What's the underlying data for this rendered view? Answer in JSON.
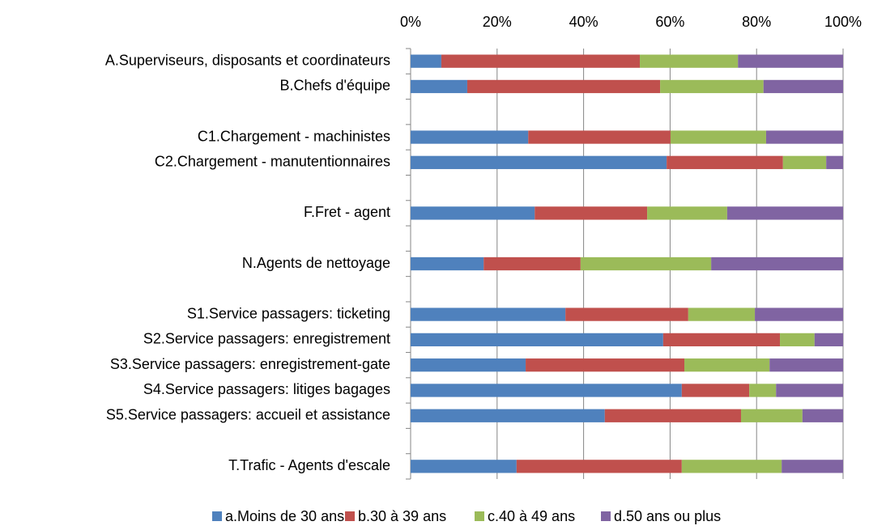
{
  "chart_data": {
    "type": "bar",
    "orientation": "horizontal",
    "stacked": true,
    "categories": [
      "A.Superviseurs, disposants et coordinateurs",
      "B.Chefs d'équipe",
      null,
      "C1.Chargement - machinistes",
      "C2.Chargement - manutentionnaires",
      null,
      "F.Fret - agent",
      null,
      "N.Agents de nettoyage",
      null,
      "S1.Service passagers: ticketing",
      "S2.Service passagers: enregistrement",
      "S3.Service passagers: enregistrement-gate",
      "S4.Service passagers: litiges bagages",
      "S5.Service passagers: accueil et assistance",
      null,
      "T.Trafic - Agents d'escale"
    ],
    "series": [
      {
        "name": "a.Moins de 30 ans",
        "color": "#4f81bd",
        "values": [
          7.1,
          13.1,
          null,
          27.2,
          59.2,
          null,
          28.7,
          null,
          16.9,
          null,
          35.8,
          58.4,
          26.6,
          62.7,
          44.9,
          null,
          24.5
        ]
      },
      {
        "name": "b.30 à 39 ans",
        "color": "#c0504d",
        "values": [
          45.9,
          44.6,
          null,
          32.9,
          26.9,
          null,
          26.0,
          null,
          22.4,
          null,
          28.4,
          27.0,
          36.7,
          15.6,
          31.5,
          null,
          38.2
        ]
      },
      {
        "name": "c.40 à 49 ans",
        "color": "#9bbb59",
        "values": [
          22.7,
          23.9,
          null,
          22.1,
          10.0,
          null,
          18.5,
          null,
          30.2,
          null,
          15.4,
          8.0,
          19.7,
          6.2,
          14.2,
          null,
          23.1
        ]
      },
      {
        "name": "d.50 ans ou plus",
        "color": "#8064a2",
        "values": [
          24.3,
          18.4,
          null,
          17.8,
          3.9,
          null,
          26.8,
          null,
          30.5,
          null,
          20.4,
          6.6,
          17.0,
          15.5,
          9.4,
          null,
          14.2
        ]
      }
    ],
    "xlim": [
      0,
      100
    ],
    "xticks": [
      {
        "value": 0,
        "label": "0%"
      },
      {
        "value": 20,
        "label": "20%"
      },
      {
        "value": 40,
        "label": "40%"
      },
      {
        "value": 60,
        "label": "60%"
      },
      {
        "value": 80,
        "label": "80%"
      },
      {
        "value": 100,
        "label": "100%"
      }
    ],
    "grid": true,
    "legend": "bottom"
  }
}
